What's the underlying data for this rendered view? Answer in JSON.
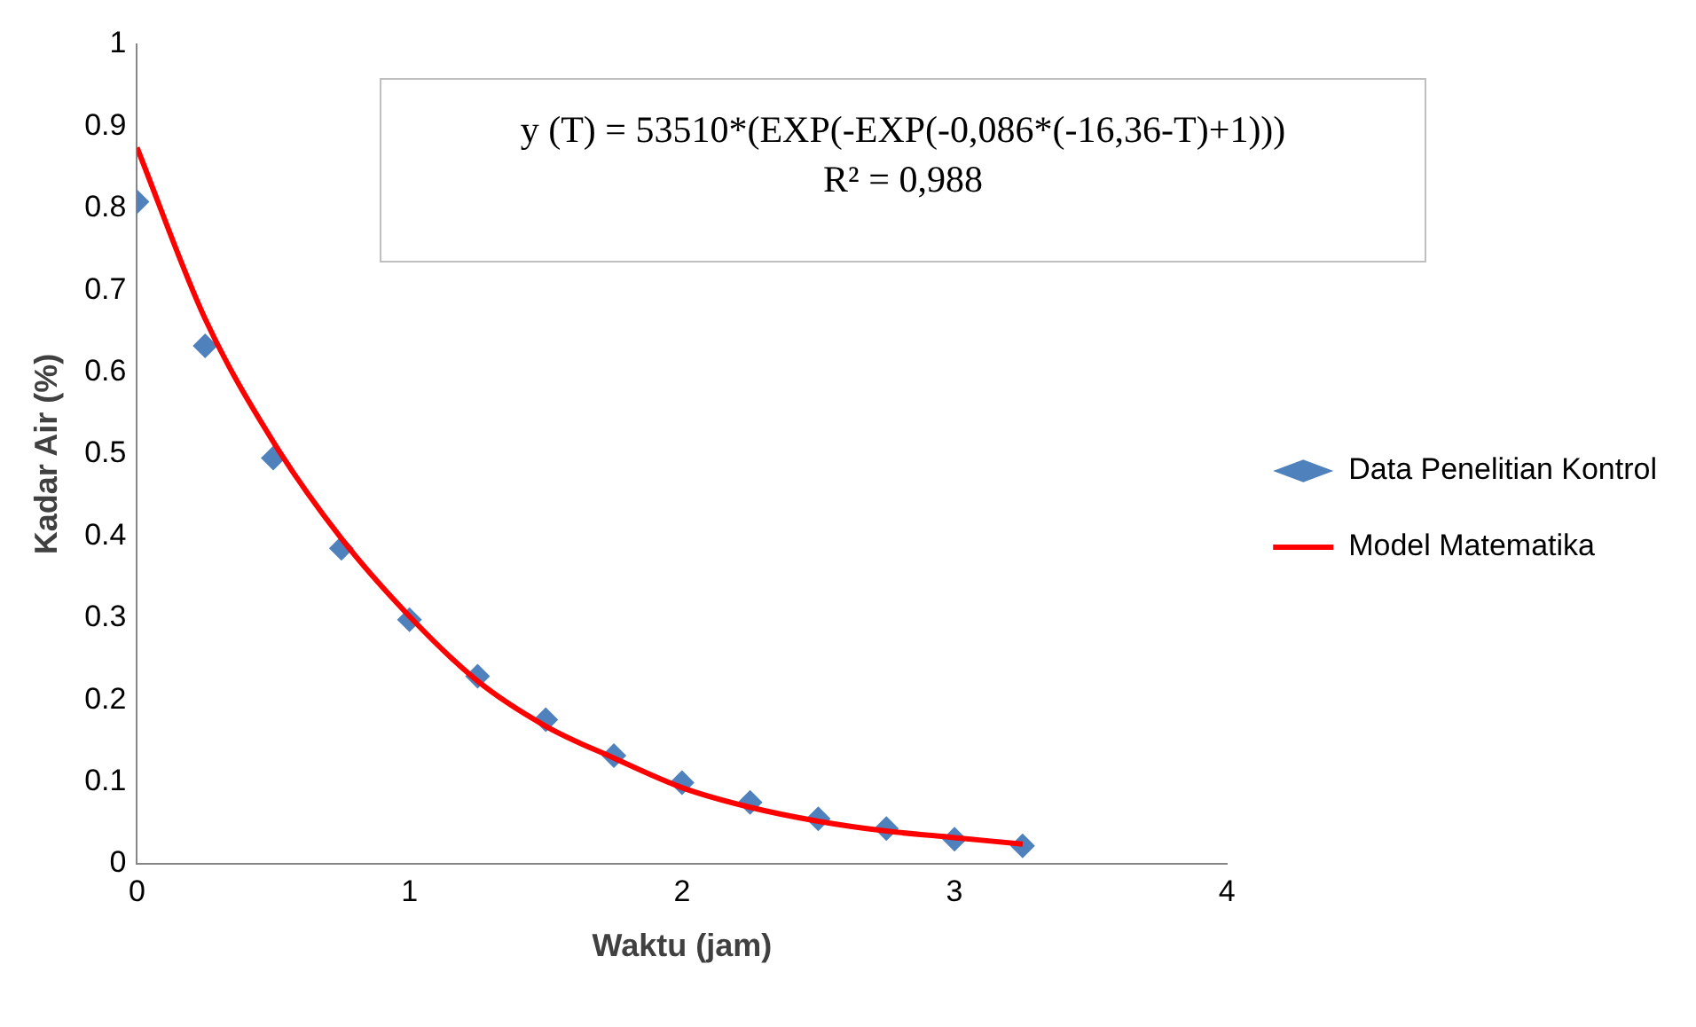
{
  "chart_data": {
    "type": "scatter",
    "xlabel": "Waktu (jam)",
    "ylabel": "Kadar Air (%)",
    "xlim": [
      0,
      4
    ],
    "xticks": [
      0,
      1,
      2,
      3,
      4
    ],
    "ylim": [
      0,
      1
    ],
    "yticks": [
      0,
      0.1,
      0.2,
      0.3,
      0.4,
      0.5,
      0.6,
      0.7,
      0.8,
      0.9,
      1
    ],
    "grid": false,
    "legend": "right",
    "marker": "diamond",
    "annotations": [
      "y (T) = 53510*(EXP(-EXP(-0,086*(-16,36-T)+1)))",
      "R² = 0,988"
    ],
    "series": [
      {
        "name": "Data Penelitian Kontrol",
        "type": "scatter",
        "color": "#4f81bd",
        "x": [
          0,
          0.25,
          0.5,
          0.75,
          1,
          1.25,
          1.5,
          1.75,
          2,
          2.25,
          2.5,
          2.75,
          3,
          3.25
        ],
        "values": [
          0.808,
          0.632,
          0.495,
          0.385,
          0.298,
          0.229,
          0.176,
          0.132,
          0.099,
          0.075,
          0.055,
          0.043,
          0.03,
          0.022
        ]
      },
      {
        "name": "Model Matematika",
        "type": "line",
        "color": "#ff0000",
        "line_style": "solid",
        "marker": "none",
        "x": [
          0,
          0.25,
          0.5,
          0.75,
          1,
          1.25,
          1.5,
          1.75,
          2,
          2.25,
          2.5,
          2.75,
          3,
          3.25
        ],
        "values": [
          0.874,
          0.665,
          0.515,
          0.397,
          0.302,
          0.223,
          0.168,
          0.129,
          0.093,
          0.069,
          0.052,
          0.04,
          0.032,
          0.024
        ]
      }
    ]
  }
}
